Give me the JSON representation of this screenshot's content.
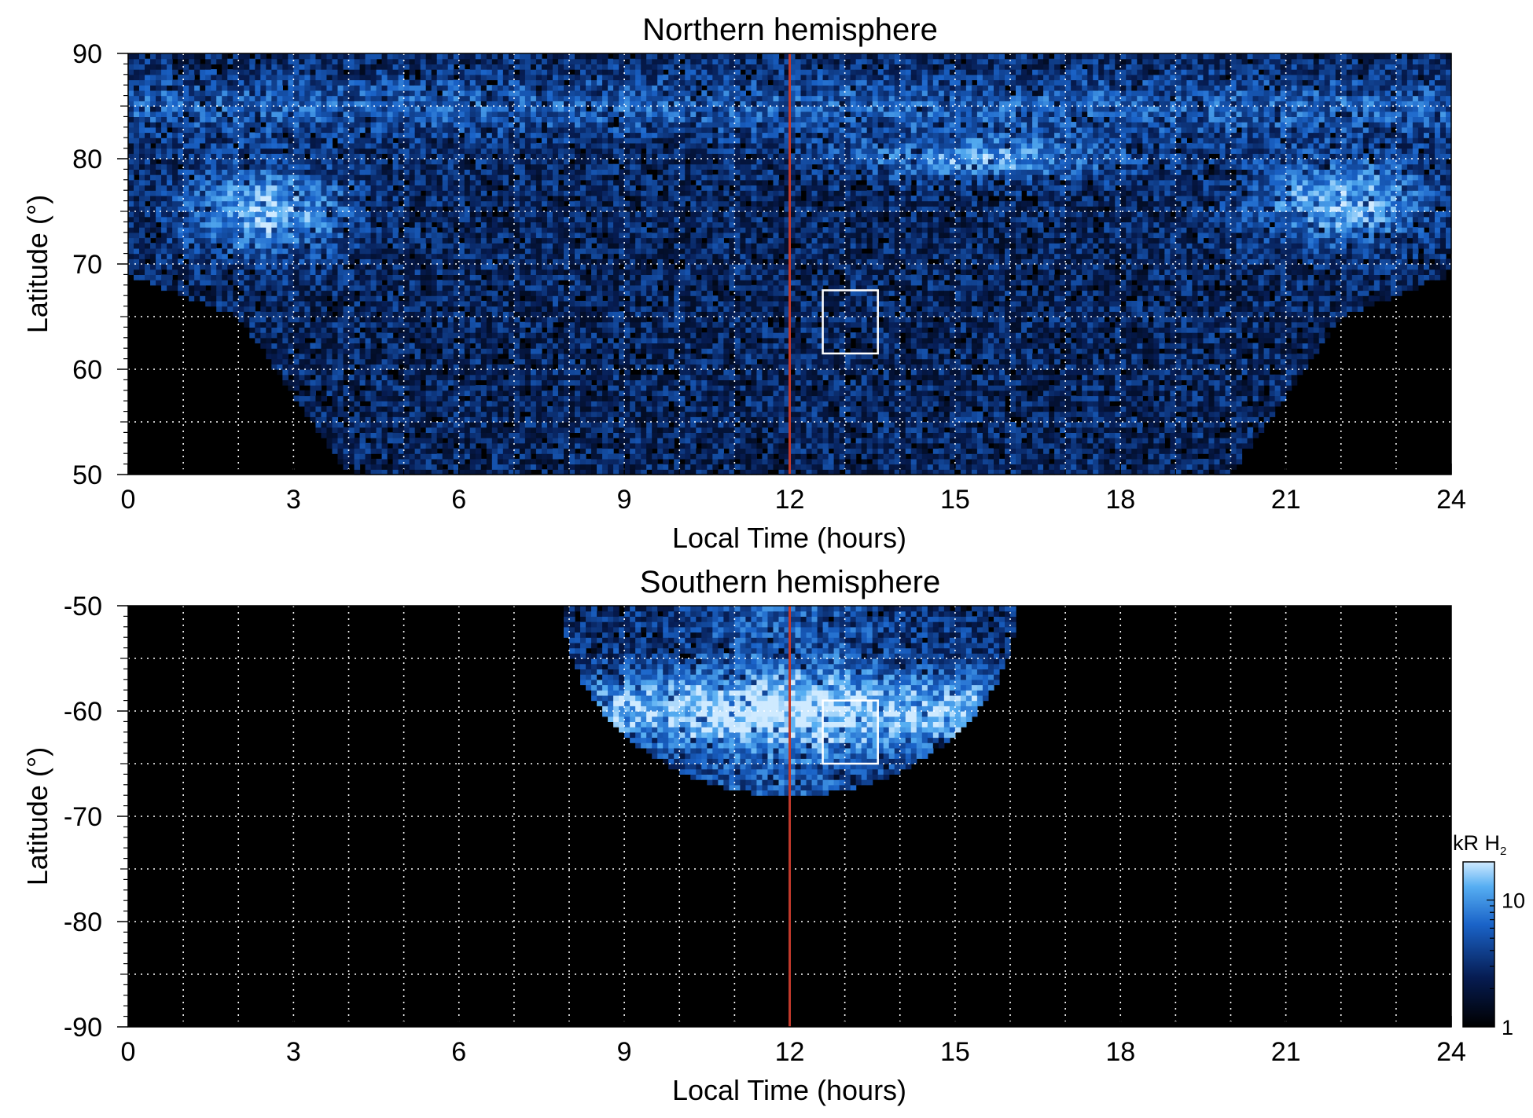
{
  "chart_data": [
    {
      "type": "heatmap",
      "title": "Northern hemisphere",
      "xlabel": "Local Time (hours)",
      "ylabel": "Latitude (°)",
      "xlim": [
        0,
        24
      ],
      "ylim": [
        50,
        90
      ],
      "x_ticks": [
        "0",
        "3",
        "6",
        "9",
        "12",
        "15",
        "18",
        "21",
        "24"
      ],
      "y_ticks": [
        "50",
        "60",
        "70",
        "80",
        "90"
      ],
      "grid": true,
      "reference_line": {
        "local_time": 12,
        "color": "#c0392b"
      },
      "highlight_box": {
        "local_time": [
          12.6,
          13.6
        ],
        "latitude": [
          61.5,
          67.5
        ]
      },
      "coverage_lower_edge_latitude": {
        "0": 69,
        "2": 65,
        "4": 50,
        "20": 50,
        "22": 65,
        "24": 69
      },
      "bright_features": [
        {
          "local_time": 2.5,
          "latitude": 75,
          "intensity_kR": 20
        },
        {
          "local_time": 15.5,
          "latitude": 80,
          "intensity_kR": 18
        },
        {
          "local_time": 22,
          "latitude": 76,
          "intensity_kR": 20
        }
      ]
    },
    {
      "type": "heatmap",
      "title": "Southern hemisphere",
      "xlabel": "Local Time (hours)",
      "ylabel": "Latitude (°)",
      "xlim": [
        0,
        24
      ],
      "ylim": [
        -90,
        -50
      ],
      "x_ticks": [
        "0",
        "3",
        "6",
        "9",
        "12",
        "15",
        "18",
        "21",
        "24"
      ],
      "y_ticks": [
        "-50",
        "-60",
        "-70",
        "-80",
        "-90"
      ],
      "grid": true,
      "reference_line": {
        "local_time": 12,
        "color": "#c0392b"
      },
      "highlight_box": {
        "local_time": [
          12.6,
          13.6
        ],
        "latitude": [
          -65,
          -59
        ]
      },
      "coverage_local_time_span_at_-50": [
        8,
        16
      ],
      "coverage_min_latitude": -68,
      "bright_features": [
        {
          "local_time": 12,
          "latitude": -60,
          "intensity_kR": 10
        }
      ]
    }
  ],
  "colorbar": {
    "label_prefix": "kR H",
    "label_subscript": "2",
    "scale": "log",
    "range": [
      1,
      20
    ],
    "ticks": [
      "10",
      "1"
    ],
    "colors": [
      "#000000",
      "#061c52",
      "#1a63c8",
      "#56aef2",
      "#cfeaff"
    ]
  }
}
